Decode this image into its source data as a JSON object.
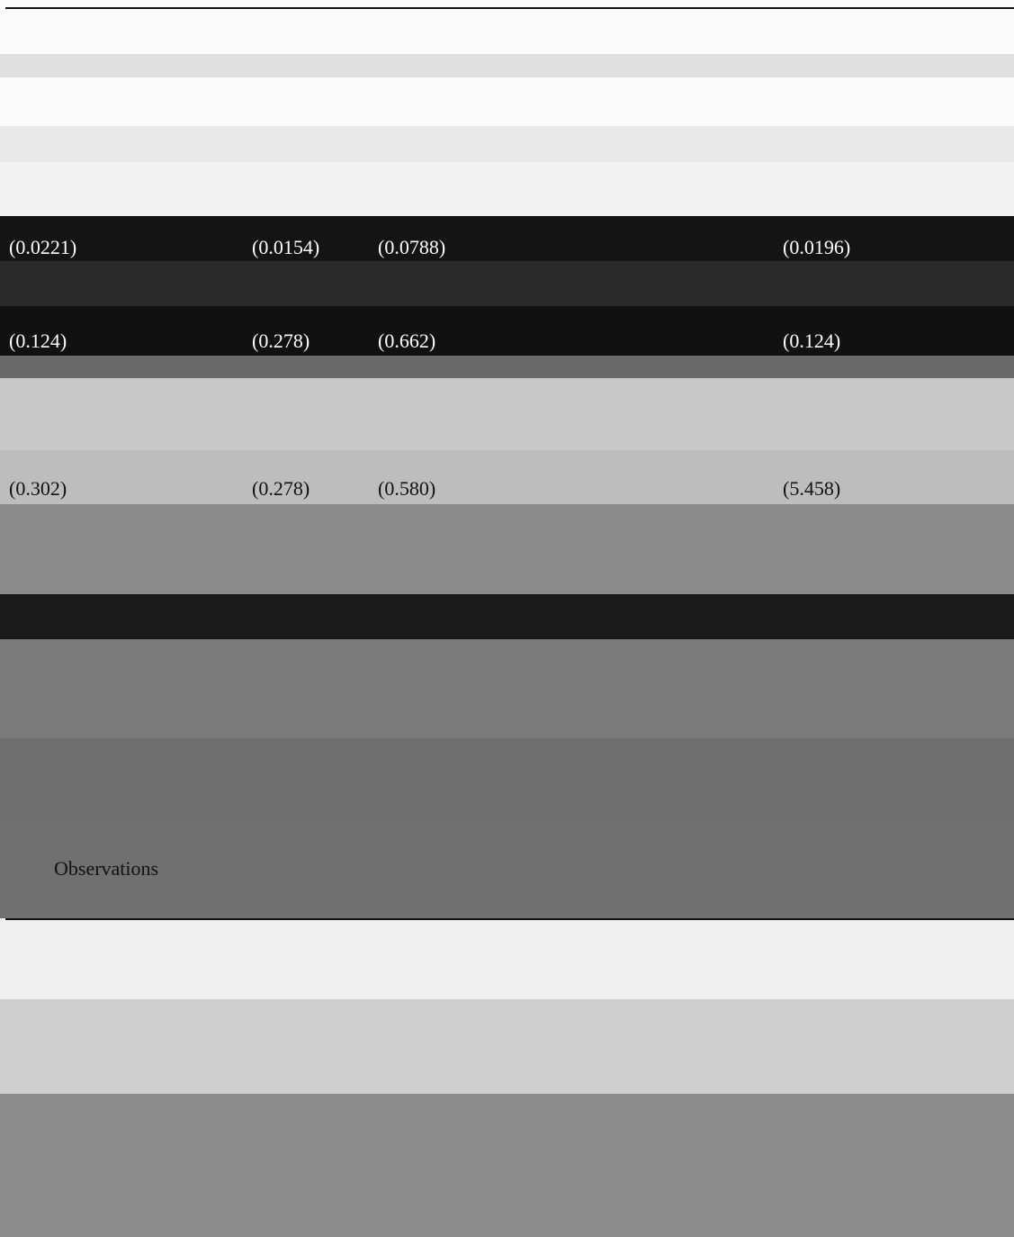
{
  "table": {
    "rows": [
      {
        "top": 262,
        "color": "#ffffff",
        "cells": [
          "(0.0221)",
          "(0.0154)",
          "(0.0788)",
          "(0.0196)"
        ]
      },
      {
        "top": 366,
        "color": "#ffffff",
        "cells": [
          "(0.124)",
          "(0.278)",
          "(0.662)",
          "(0.124)"
        ]
      },
      {
        "top": 530,
        "color": "#111111",
        "cells": [
          "(0.302)",
          "(0.278)",
          "(0.580)",
          "(5.458)"
        ]
      },
      {
        "top": 952,
        "color": "#111111",
        "cells": [
          "Observations"
        ]
      }
    ]
  }
}
